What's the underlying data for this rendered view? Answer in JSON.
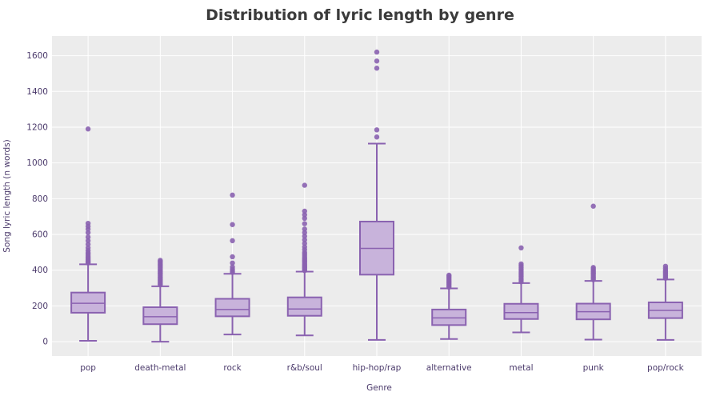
{
  "chart_data": {
    "type": "box",
    "title": "Distribution of lyric length by genre",
    "xlabel": "Genre",
    "ylabel": "Song lyric length (n words)",
    "ylim": [
      -80,
      1710
    ],
    "yticks": [
      0,
      200,
      400,
      600,
      800,
      1000,
      1200,
      1400,
      1600
    ],
    "grid": true,
    "colors": {
      "plot_bg": "#ececec",
      "grid": "#ffffff",
      "box_fill": "#c8b3db",
      "box_line": "#8a62b0",
      "outlier": "#8a62b0",
      "text": "#4b3a6b"
    },
    "categories": [
      "pop",
      "death-metal",
      "rock",
      "r&b/soul",
      "hip-hop/rap",
      "alternative",
      "metal",
      "punk",
      "pop/rock"
    ],
    "boxes": [
      {
        "category": "pop",
        "min": 5,
        "q1": 162,
        "median": 215,
        "q3": 275,
        "max": 433,
        "outliers": [
          440,
          445,
          452,
          458,
          465,
          472,
          480,
          490,
          498,
          510,
          525,
          545,
          565,
          585,
          610,
          630,
          645,
          662,
          1190
        ]
      },
      {
        "category": "death-metal",
        "min": 0,
        "q1": 98,
        "median": 140,
        "q3": 193,
        "max": 310,
        "outliers": [
          318,
          325,
          332,
          340,
          347,
          355,
          362,
          370,
          378,
          385,
          392,
          400,
          408,
          416,
          425,
          432,
          440,
          448,
          455
        ]
      },
      {
        "category": "rock",
        "min": 40,
        "q1": 142,
        "median": 180,
        "q3": 240,
        "max": 380,
        "outliers": [
          388,
          395,
          405,
          418,
          440,
          475,
          565,
          655,
          820
        ]
      },
      {
        "category": "r&b/soul",
        "min": 35,
        "q1": 145,
        "median": 183,
        "q3": 248,
        "max": 392,
        "outliers": [
          398,
          405,
          412,
          418,
          425,
          432,
          440,
          448,
          455,
          462,
          470,
          480,
          490,
          500,
          515,
          530,
          550,
          570,
          590,
          610,
          630,
          660,
          690,
          710,
          730,
          875
        ]
      },
      {
        "category": "hip-hop/rap",
        "min": 10,
        "q1": 375,
        "median": 522,
        "q3": 672,
        "max": 1108,
        "outliers": [
          1145,
          1185,
          1530,
          1570,
          1620
        ]
      },
      {
        "category": "alternative",
        "min": 15,
        "q1": 93,
        "median": 133,
        "q3": 180,
        "max": 298,
        "outliers": [
          305,
          312,
          320,
          327,
          335,
          342,
          350,
          358,
          365,
          372
        ]
      },
      {
        "category": "metal",
        "min": 52,
        "q1": 127,
        "median": 163,
        "q3": 212,
        "max": 328,
        "outliers": [
          335,
          345,
          355,
          365,
          375,
          385,
          395,
          405,
          415,
          425,
          435,
          525
        ]
      },
      {
        "category": "punk",
        "min": 12,
        "q1": 125,
        "median": 168,
        "q3": 213,
        "max": 340,
        "outliers": [
          347,
          355,
          362,
          370,
          378,
          385,
          392,
          400,
          408,
          415,
          758
        ]
      },
      {
        "category": "pop/rock",
        "min": 10,
        "q1": 132,
        "median": 175,
        "q3": 220,
        "max": 348,
        "outliers": [
          355,
          362,
          370,
          377,
          385,
          392,
          400,
          410,
          422
        ]
      }
    ]
  }
}
